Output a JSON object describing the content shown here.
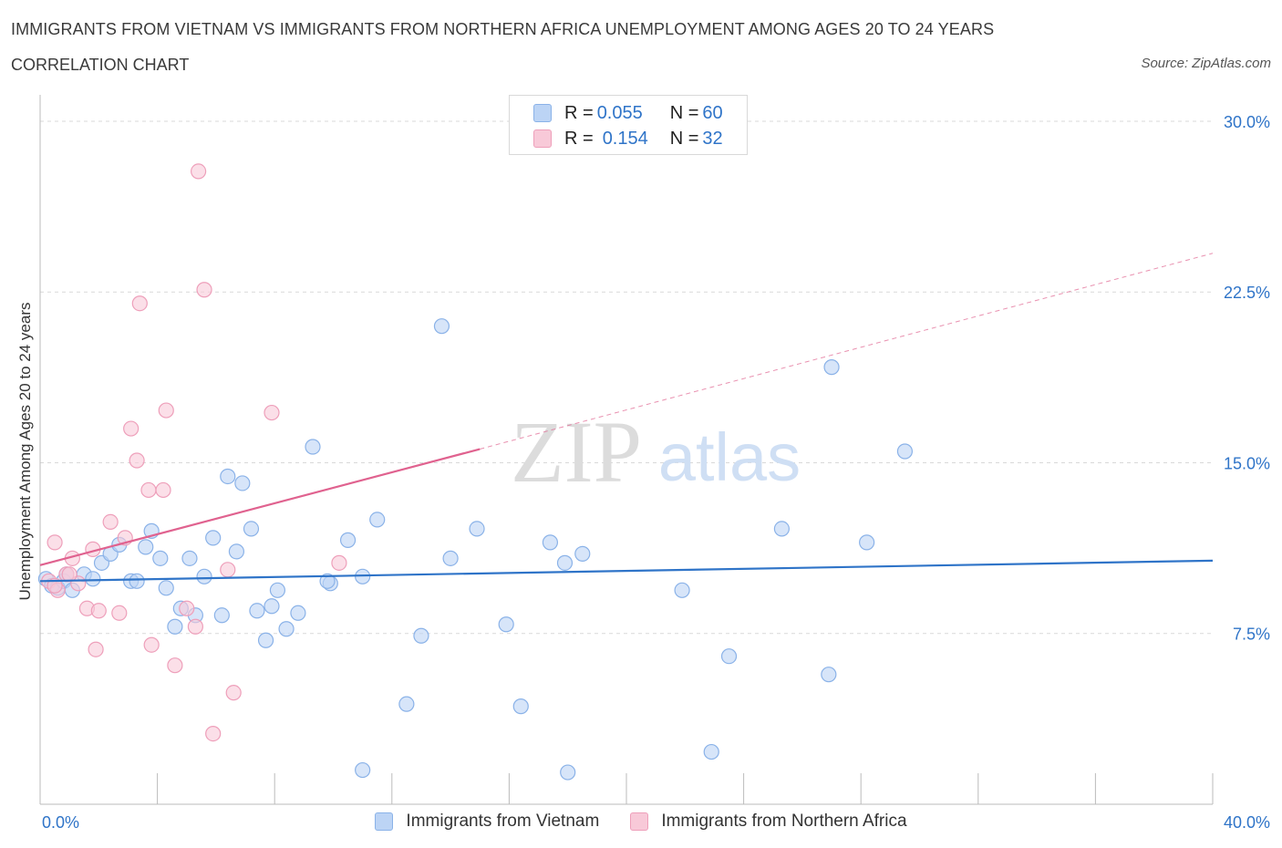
{
  "header": {
    "title": "IMMIGRANTS FROM VIETNAM VS IMMIGRANTS FROM NORTHERN AFRICA UNEMPLOYMENT AMONG AGES 20 TO 24 YEARS",
    "subtitle": "CORRELATION CHART",
    "source": "Source: ZipAtlas.com"
  },
  "watermark": {
    "zip": "ZIP",
    "atlas": "atlas"
  },
  "legend_top": {
    "rows": [
      {
        "r_label": "R = ",
        "r_value": "0.055",
        "n_label": "N = ",
        "n_value": "60"
      },
      {
        "r_label": "R = ",
        "r_value": "0.154",
        "n_label": "N = ",
        "n_value": "32"
      }
    ]
  },
  "colors": {
    "vietnam_fill": "#bcd4f5",
    "vietnam_stroke": "#8ab2e8",
    "vietnam_line": "#2f74c8",
    "nafrica_fill": "#f8c9d8",
    "nafrica_stroke": "#ee9fba",
    "nafrica_line": "#e0628f",
    "grid": "#d9d9d9",
    "tick_text": "#2f74c8"
  },
  "chart_data": {
    "type": "scatter",
    "title": "IMMIGRANTS FROM VIETNAM VS IMMIGRANTS FROM NORTHERN AFRICA UNEMPLOYMENT AMONG AGES 20 TO 24 YEARS",
    "subtitle": "CORRELATION CHART",
    "xlabel": "",
    "ylabel": "Unemployment Among Ages 20 to 24 years",
    "xlim": [
      0,
      40
    ],
    "ylim": [
      0,
      30.6
    ],
    "x_tick_labels": [
      {
        "value": 0,
        "label": "0.0%"
      },
      {
        "value": 40,
        "label": "40.0%"
      }
    ],
    "y_tick_labels": [
      {
        "value": 7.5,
        "label": "7.5%"
      },
      {
        "value": 15,
        "label": "15.0%"
      },
      {
        "value": 22.5,
        "label": "22.5%"
      },
      {
        "value": 30,
        "label": "30.0%"
      }
    ],
    "grid": true,
    "legend_position": "bottom",
    "series": [
      {
        "name": "Immigrants from Vietnam",
        "r": 0.055,
        "n": 60,
        "trend": {
          "x": [
            0,
            40
          ],
          "y": [
            9.8,
            10.7
          ]
        },
        "points": [
          [
            0.2,
            9.9
          ],
          [
            0.4,
            9.6
          ],
          [
            0.6,
            9.5
          ],
          [
            0.8,
            9.8
          ],
          [
            0.9,
            10.1
          ],
          [
            1.1,
            9.4
          ],
          [
            1.5,
            10.1
          ],
          [
            1.8,
            9.9
          ],
          [
            2.1,
            10.6
          ],
          [
            2.4,
            11.0
          ],
          [
            2.7,
            11.4
          ],
          [
            3.1,
            9.8
          ],
          [
            3.3,
            9.8
          ],
          [
            3.6,
            11.3
          ],
          [
            3.8,
            12.0
          ],
          [
            4.1,
            10.8
          ],
          [
            4.3,
            9.5
          ],
          [
            4.6,
            7.8
          ],
          [
            4.8,
            8.6
          ],
          [
            5.1,
            10.8
          ],
          [
            5.3,
            8.3
          ],
          [
            5.6,
            10.0
          ],
          [
            5.9,
            11.7
          ],
          [
            6.2,
            8.3
          ],
          [
            6.4,
            14.4
          ],
          [
            6.7,
            11.1
          ],
          [
            6.9,
            14.1
          ],
          [
            7.2,
            12.1
          ],
          [
            7.4,
            8.5
          ],
          [
            7.7,
            7.2
          ],
          [
            7.9,
            8.7
          ],
          [
            8.1,
            9.4
          ],
          [
            8.4,
            7.7
          ],
          [
            8.8,
            8.4
          ],
          [
            9.3,
            15.7
          ],
          [
            9.9,
            9.7
          ],
          [
            10.5,
            11.6
          ],
          [
            11.0,
            10.0
          ],
          [
            11.5,
            12.5
          ],
          [
            12.5,
            4.4
          ],
          [
            13.0,
            7.4
          ],
          [
            13.7,
            21.0
          ],
          [
            14.0,
            10.8
          ],
          [
            14.9,
            12.1
          ],
          [
            15.9,
            7.9
          ],
          [
            16.4,
            4.3
          ],
          [
            17.4,
            11.5
          ],
          [
            17.9,
            10.6
          ],
          [
            18.5,
            11.0
          ],
          [
            18.0,
            1.4
          ],
          [
            21.9,
            9.4
          ],
          [
            22.9,
            2.3
          ],
          [
            23.5,
            6.5
          ],
          [
            25.3,
            12.1
          ],
          [
            26.9,
            5.7
          ],
          [
            27.0,
            19.2
          ],
          [
            28.2,
            11.5
          ],
          [
            29.5,
            15.5
          ],
          [
            9.8,
            9.8
          ],
          [
            11.0,
            1.5
          ]
        ]
      },
      {
        "name": "Immigrants from Northern Africa",
        "r": 0.154,
        "n": 32,
        "trend": {
          "x": [
            0,
            15
          ],
          "y": [
            10.5,
            15.6
          ],
          "x_dashed_end": 40,
          "y_dashed_end": 24.2
        },
        "points": [
          [
            0.3,
            9.8
          ],
          [
            0.5,
            11.5
          ],
          [
            0.6,
            9.4
          ],
          [
            0.9,
            10.1
          ],
          [
            1.1,
            10.8
          ],
          [
            1.3,
            9.7
          ],
          [
            1.6,
            8.6
          ],
          [
            1.8,
            11.2
          ],
          [
            1.9,
            6.8
          ],
          [
            2.0,
            8.5
          ],
          [
            2.4,
            12.4
          ],
          [
            2.7,
            8.4
          ],
          [
            2.9,
            11.7
          ],
          [
            3.1,
            16.5
          ],
          [
            3.3,
            15.1
          ],
          [
            3.4,
            22.0
          ],
          [
            3.7,
            13.8
          ],
          [
            3.8,
            7.0
          ],
          [
            4.2,
            13.8
          ],
          [
            4.3,
            17.3
          ],
          [
            4.6,
            6.1
          ],
          [
            5.0,
            8.6
          ],
          [
            5.3,
            7.8
          ],
          [
            5.4,
            27.8
          ],
          [
            5.6,
            22.6
          ],
          [
            5.9,
            3.1
          ],
          [
            6.4,
            10.3
          ],
          [
            6.6,
            4.9
          ],
          [
            7.9,
            17.2
          ],
          [
            10.2,
            10.6
          ],
          [
            1.0,
            10.1
          ],
          [
            0.5,
            9.6
          ]
        ]
      }
    ]
  },
  "legend_bottom": [
    {
      "label": "Immigrants from Vietnam"
    },
    {
      "label": "Immigrants from Northern Africa"
    }
  ]
}
